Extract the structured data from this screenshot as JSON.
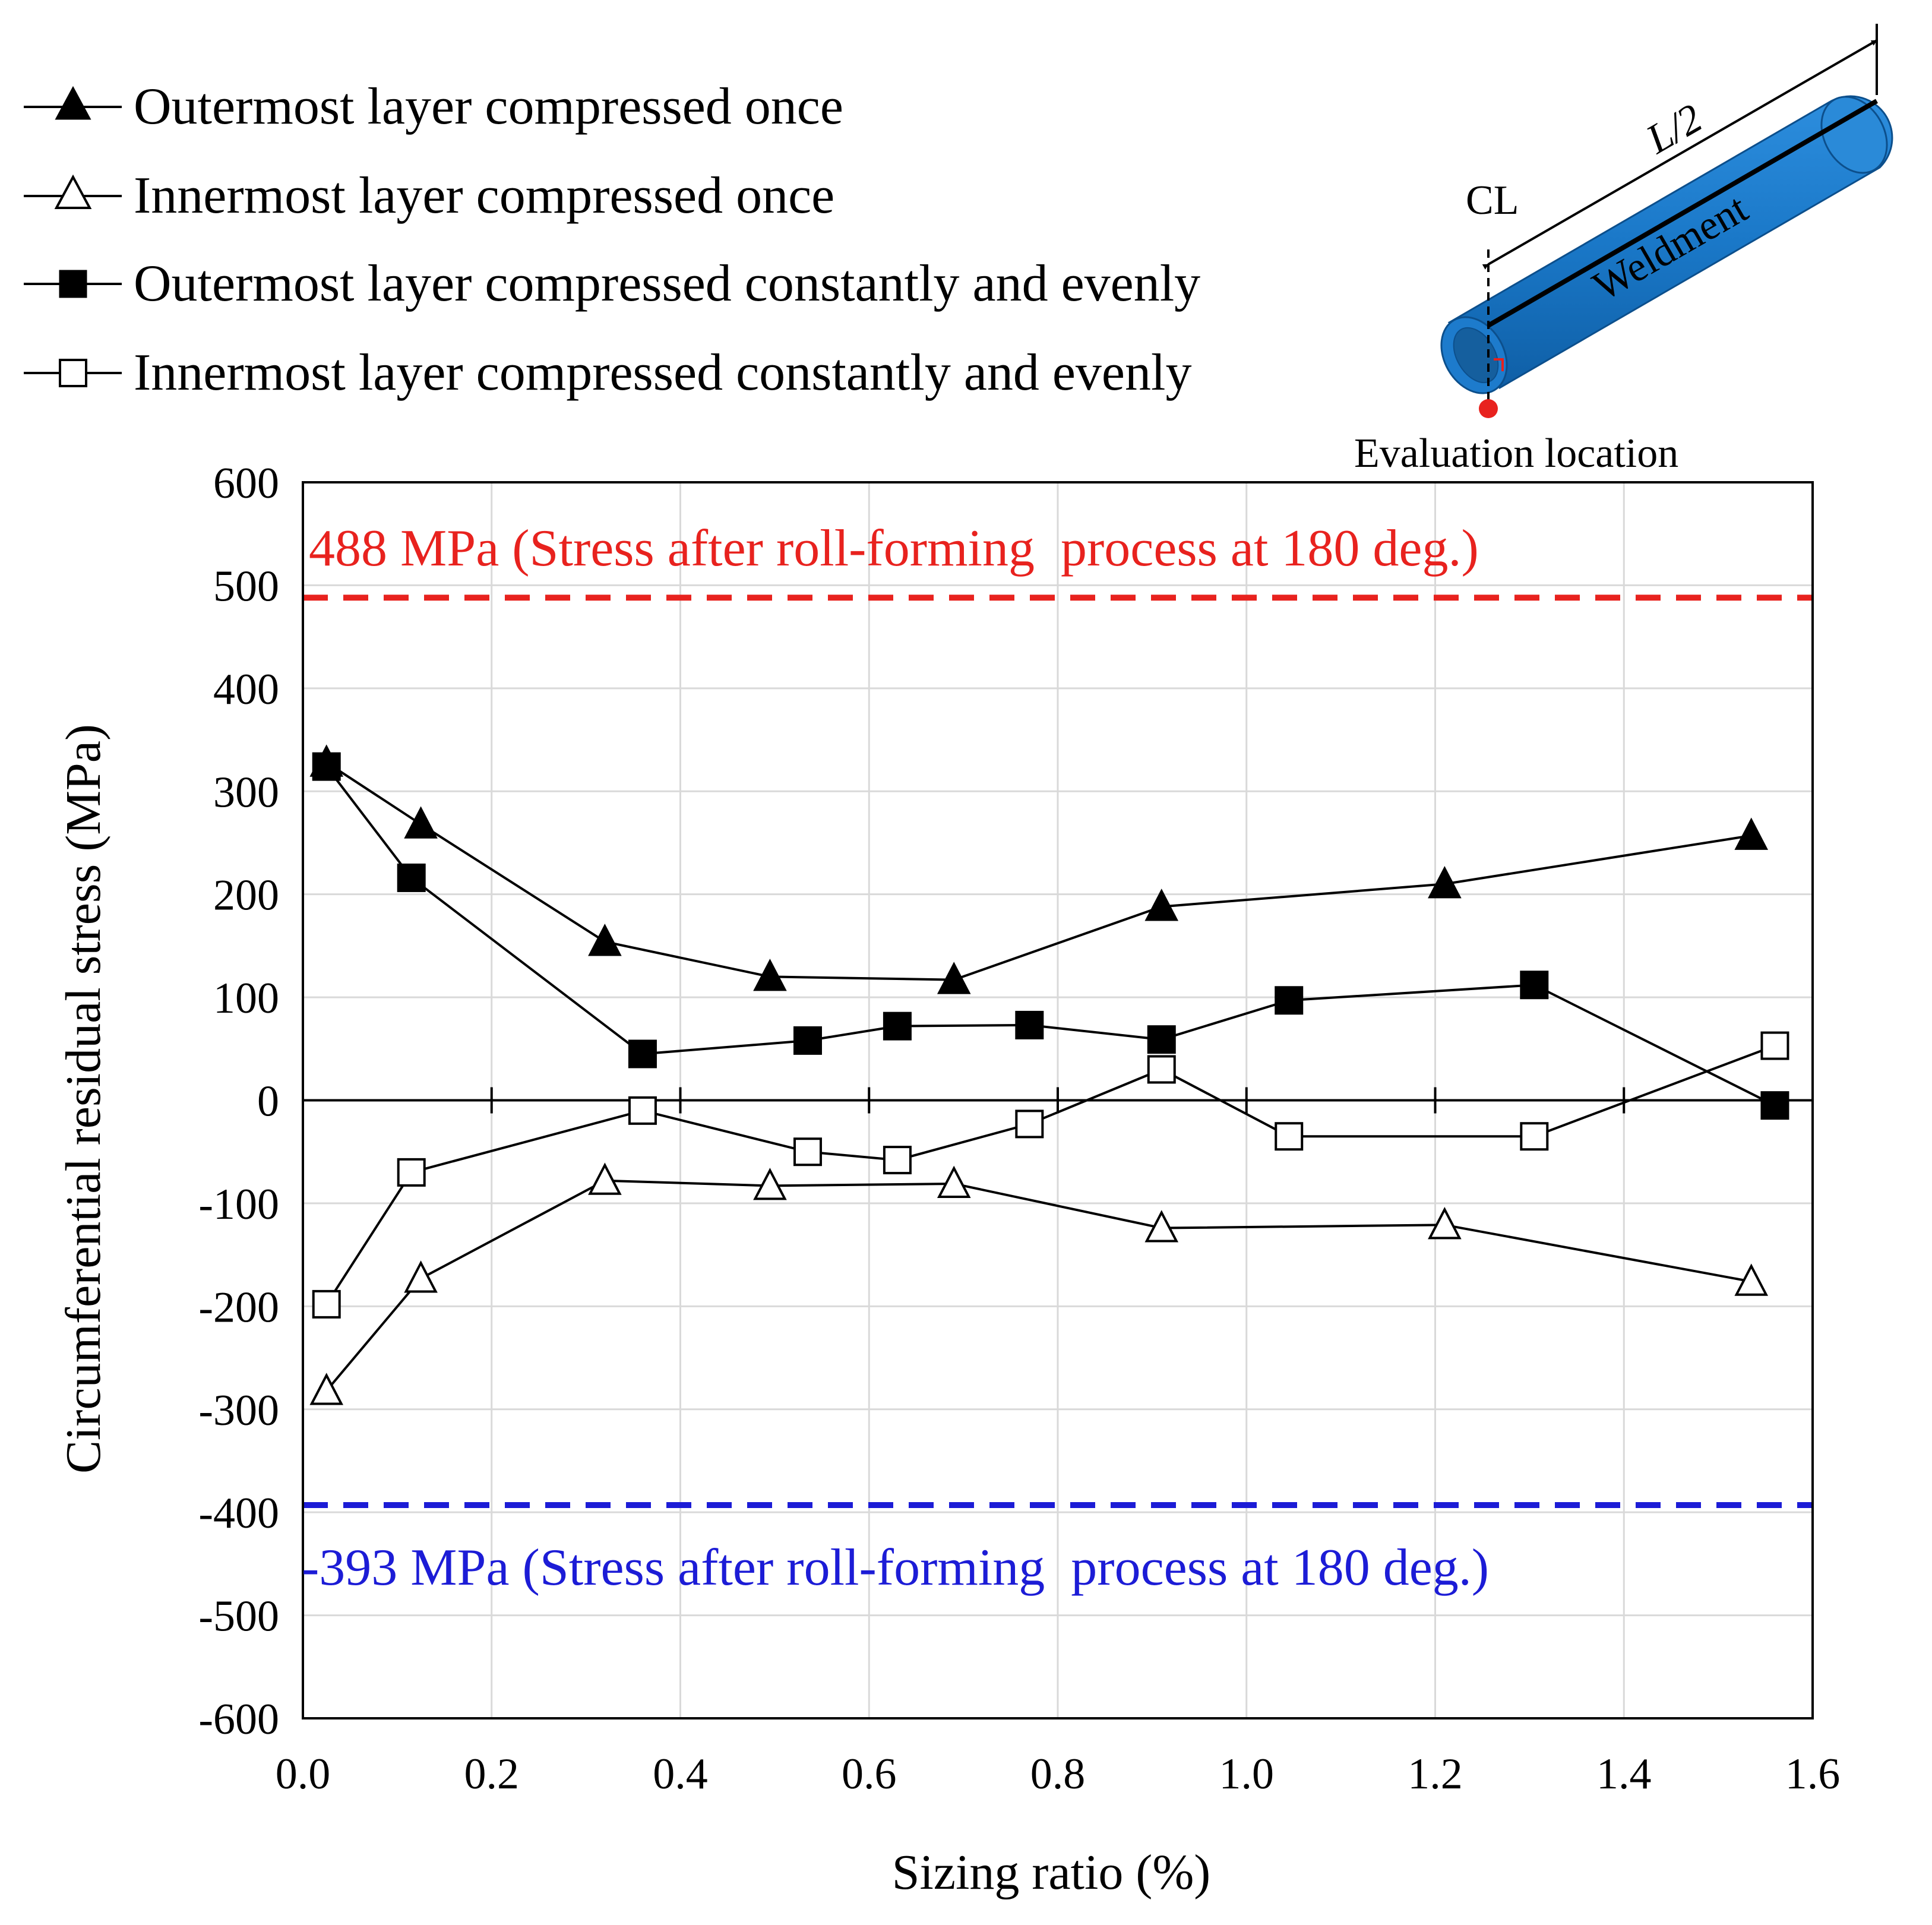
{
  "chart_data": {
    "type": "line",
    "xlabel": "Sizing ratio (%)",
    "ylabel": "Circumferential residual stress (MPa)",
    "xlim": [
      0.0,
      1.6
    ],
    "ylim": [
      -600,
      600
    ],
    "x_ticks": [
      "0.0",
      "0.2",
      "0.4",
      "0.6",
      "0.8",
      "1.0",
      "1.2",
      "1.4",
      "1.6"
    ],
    "y_ticks": [
      "600",
      "500",
      "400",
      "300",
      "200",
      "100",
      "0",
      "-100",
      "-200",
      "-300",
      "-400",
      "-500",
      "-600"
    ],
    "grid": true,
    "legend_position": "top-left",
    "series": [
      {
        "name": "Outermost layer compressed once",
        "marker": "filled-triangle",
        "color": "#000000",
        "x": [
          0.025,
          0.125,
          0.32,
          0.495,
          0.69,
          0.91,
          1.21,
          1.535
        ],
        "y": [
          328,
          268,
          154,
          120,
          117,
          188,
          210,
          257
        ]
      },
      {
        "name": "Innermost layer compressed once",
        "marker": "open-triangle",
        "color": "#000000",
        "x": [
          0.025,
          0.125,
          0.32,
          0.495,
          0.69,
          0.91,
          1.21,
          1.535
        ],
        "y": [
          -282,
          -173,
          -78,
          -83,
          -81,
          -124,
          -121,
          -176
        ]
      },
      {
        "name": "Outermost layer compressed constantly and evenly",
        "marker": "filled-square",
        "color": "#000000",
        "x": [
          0.025,
          0.115,
          0.36,
          0.535,
          0.63,
          0.77,
          0.91,
          1.045,
          1.305,
          1.56
        ],
        "y": [
          324,
          216,
          45,
          58,
          72,
          73,
          59,
          97,
          112,
          -5
        ]
      },
      {
        "name": "Innermost layer compressed constantly and evenly",
        "marker": "open-square",
        "color": "#000000",
        "x": [
          0.025,
          0.115,
          0.36,
          0.535,
          0.63,
          0.77,
          0.91,
          1.045,
          1.305,
          1.56
        ],
        "y": [
          -198,
          -70,
          -10,
          -50,
          -58,
          -23,
          30,
          -35,
          -35,
          53
        ]
      }
    ],
    "reference_lines": [
      {
        "y": 488,
        "color": "#e8221e",
        "style": "dashed",
        "label": "488 MPa (Stress after roll-forming  process at 180 deg.)"
      },
      {
        "y": -393,
        "color": "#1c1cd6",
        "style": "dashed",
        "label": "-393 MPa (Stress after roll-forming  process at 180 deg.)"
      }
    ]
  },
  "inset": {
    "dimension_label": "L/2",
    "centerline_label": "CL",
    "part_label": "Weldment",
    "location_label": "Evaluation location",
    "tube_color": "#1a78c8",
    "location_color": "#e8221e"
  }
}
